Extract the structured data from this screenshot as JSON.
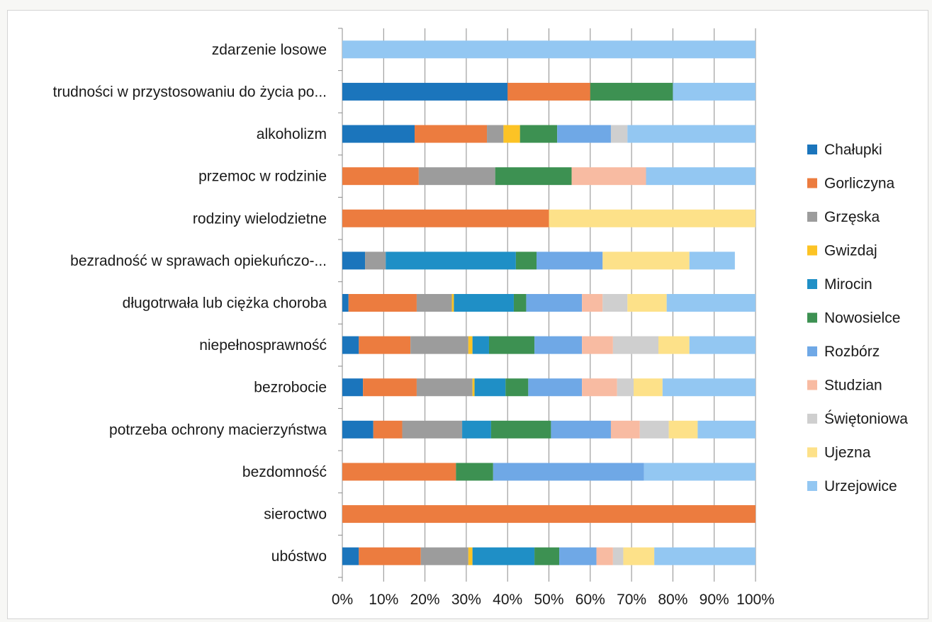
{
  "chart_data": {
    "type": "bar",
    "orientation": "horizontal",
    "stacked": "100%",
    "categories": [
      "ubóstwo",
      "sieroctwo",
      "bezdomność",
      "potrzeba ochrony macierzyństwa",
      "bezrobocie",
      "niepełnosprawność",
      "długotrwała lub ciężka choroba",
      "bezradność w sprawach opiekuńczo-...",
      "rodziny wielodzietne",
      "przemoc w rodzinie",
      "alkoholizm",
      "trudności w przystosowaniu do życia po...",
      "zdarzenie losowe"
    ],
    "series": [
      {
        "name": "Chałupki",
        "color": "#1b75bc",
        "values": [
          4,
          0,
          0,
          7.5,
          5,
          4,
          1.5,
          5.5,
          0,
          0,
          17.5,
          40,
          0
        ]
      },
      {
        "name": "Gorliczyna",
        "color": "#ec7c3f",
        "values": [
          15,
          100,
          27.5,
          7,
          13,
          12.5,
          16.5,
          0,
          50,
          18.5,
          17.5,
          20,
          0
        ]
      },
      {
        "name": "Grzęska",
        "color": "#9c9c9c",
        "values": [
          11.5,
          0,
          0,
          14.5,
          13.5,
          14,
          8.5,
          5,
          0,
          18.5,
          4,
          0,
          0
        ]
      },
      {
        "name": "Gwizdaj",
        "color": "#fcc325",
        "values": [
          1,
          0,
          0,
          0,
          0.5,
          1,
          0.5,
          0,
          0,
          0,
          4,
          0,
          0
        ]
      },
      {
        "name": "Mirocin",
        "color": "#1f8fc6",
        "values": [
          15,
          0,
          0,
          7,
          7.5,
          4,
          14.5,
          31.5,
          0,
          0,
          0,
          0,
          0
        ]
      },
      {
        "name": "Nowosielce",
        "color": "#3d9152",
        "values": [
          6,
          0,
          9,
          14.5,
          5.5,
          11,
          3,
          5,
          0,
          18.5,
          9,
          20,
          0
        ]
      },
      {
        "name": "Rozbórz",
        "color": "#6fa8e6",
        "values": [
          9,
          0,
          36.5,
          14.5,
          13,
          11.5,
          13.5,
          16,
          0,
          0,
          13,
          0,
          0
        ]
      },
      {
        "name": "Studzian",
        "color": "#f8bba2",
        "values": [
          4,
          0,
          0,
          7,
          8.5,
          7.5,
          5,
          0,
          0,
          18,
          0,
          0,
          0
        ]
      },
      {
        "name": "Świętoniowa",
        "color": "#cfcfcf",
        "values": [
          2.5,
          0,
          0,
          7,
          4,
          11,
          6,
          0,
          0,
          0,
          4,
          0,
          0
        ]
      },
      {
        "name": "Ujezna",
        "color": "#fde189",
        "values": [
          7.5,
          0,
          0,
          7,
          7,
          7.5,
          9.5,
          21,
          50,
          0,
          0,
          0,
          0
        ]
      },
      {
        "name": "Urzejowice",
        "color": "#93c7f2",
        "values": [
          24.5,
          0,
          27,
          14,
          22.5,
          16,
          21.5,
          11,
          0,
          26.5,
          31,
          20,
          100
        ]
      }
    ],
    "xlim": [
      0,
      100
    ],
    "x_ticks": [
      "0%",
      "10%",
      "20%",
      "30%",
      "40%",
      "50%",
      "60%",
      "70%",
      "80%",
      "90%",
      "100%"
    ],
    "grid": "vertical",
    "legend_position": "right",
    "title": "",
    "xlabel": "",
    "ylabel": ""
  }
}
